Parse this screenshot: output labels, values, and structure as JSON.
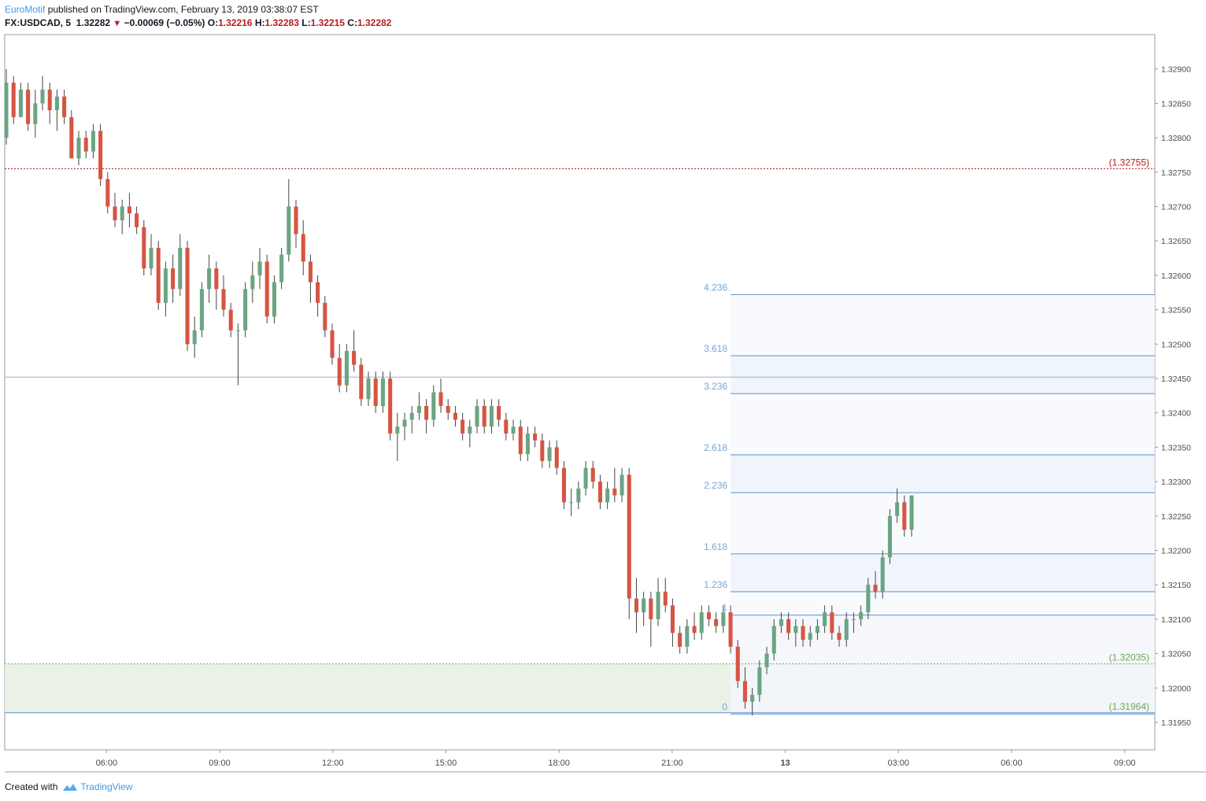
{
  "header": {
    "author": "EuroMotif",
    "published_text": "published on TradingView.com, February 13, 2019 03:38:07 EST",
    "symbol": "FX:USDCAD, 5",
    "last_price": "1.32282",
    "change": "−0.00069 (−0.05%)",
    "open_label": "O:",
    "open": "1.32216",
    "high_label": "H:",
    "high": "1.32283",
    "low_label": "L:",
    "low": "1.32215",
    "close_label": "C:",
    "close": "1.32282",
    "down_icon": "triangle-down-icon"
  },
  "footer": {
    "created_with": "Created with",
    "brand": "TradingView",
    "logo_icon": "tradingview-cloud-icon"
  },
  "colors": {
    "up": "#6ba583",
    "down": "#d75442",
    "fib_line": "#5b8fc7",
    "fib_text": "#7aa6d6",
    "red_level": "#b71c1c",
    "green_level": "#6aa84f",
    "axis_text": "#4a4a4a"
  },
  "chart_data": {
    "type": "candlestick",
    "symbol": "FX:USDCAD",
    "interval": "5",
    "ylim": [
      1.3191,
      1.3295
    ],
    "y_ticks": [
      "1.32900",
      "1.32850",
      "1.32800",
      "1.32750",
      "1.32700",
      "1.32650",
      "1.32600",
      "1.32550",
      "1.32500",
      "1.32450",
      "1.32400",
      "1.32350",
      "1.32300",
      "1.32250",
      "1.32200",
      "1.32150",
      "1.32100",
      "1.32050",
      "1.32000",
      "1.31950"
    ],
    "x_ticks": [
      "06:00",
      "09:00",
      "12:00",
      "15:00",
      "18:00",
      "21:00",
      "13",
      "03:00",
      "06:00",
      "09:00"
    ],
    "x_tick_hours": [
      6,
      9,
      12,
      15,
      18,
      21,
      24,
      27,
      30,
      33
    ],
    "time_range_hours": [
      3.3,
      33.8
    ],
    "horizontal_levels": [
      {
        "label": "(1.32755)",
        "price": 1.32755,
        "color": "red",
        "style": "dotted"
      },
      {
        "label": "(1.32035)",
        "price": 1.32035,
        "color": "green",
        "style": "dotted"
      },
      {
        "label": "(1.31964)",
        "price": 1.31964,
        "color": "green",
        "style": "solid"
      }
    ],
    "support_zone": [
      1.31964,
      1.32035
    ],
    "blue_horizontal_line": 1.32452,
    "fib_extension": {
      "start_hour": 22.55,
      "levels": [
        {
          "label": "4.236",
          "price": 1.32572
        },
        {
          "label": "3.618",
          "price": 1.32483
        },
        {
          "label": "3.236",
          "price": 1.32428
        },
        {
          "label": "2.618",
          "price": 1.32339
        },
        {
          "label": "2.236",
          "price": 1.32284
        },
        {
          "label": "1.618",
          "price": 1.32195
        },
        {
          "label": "1.236",
          "price": 1.3214
        },
        {
          "label": "1",
          "price": 1.32106
        },
        {
          "label": "0",
          "price": 1.31962
        }
      ]
    },
    "candles_ohlc": [
      [
        1.328,
        1.329,
        1.3279,
        1.3288
      ],
      [
        1.3288,
        1.3289,
        1.3282,
        1.3283
      ],
      [
        1.3283,
        1.3288,
        1.3283,
        1.3287
      ],
      [
        1.3287,
        1.3288,
        1.3281,
        1.3282
      ],
      [
        1.3282,
        1.3287,
        1.328,
        1.3285
      ],
      [
        1.3285,
        1.3289,
        1.3284,
        1.3287
      ],
      [
        1.3287,
        1.3288,
        1.3282,
        1.3284
      ],
      [
        1.3284,
        1.3287,
        1.3281,
        1.3286
      ],
      [
        1.3286,
        1.3287,
        1.3282,
        1.3283
      ],
      [
        1.3283,
        1.3284,
        1.3277,
        1.3277
      ],
      [
        1.3277,
        1.3281,
        1.3276,
        1.328
      ],
      [
        1.328,
        1.3281,
        1.3277,
        1.3278
      ],
      [
        1.3278,
        1.3282,
        1.3277,
        1.3281
      ],
      [
        1.3281,
        1.3282,
        1.3273,
        1.3274
      ],
      [
        1.3274,
        1.3275,
        1.3269,
        1.327
      ],
      [
        1.327,
        1.3272,
        1.3267,
        1.3268
      ],
      [
        1.3268,
        1.3271,
        1.3266,
        1.327
      ],
      [
        1.327,
        1.3272,
        1.3267,
        1.3269
      ],
      [
        1.3269,
        1.327,
        1.3266,
        1.3267
      ],
      [
        1.3267,
        1.3268,
        1.326,
        1.3261
      ],
      [
        1.3261,
        1.3266,
        1.326,
        1.3264
      ],
      [
        1.3264,
        1.3265,
        1.3255,
        1.3256
      ],
      [
        1.3256,
        1.3262,
        1.3254,
        1.3261
      ],
      [
        1.3261,
        1.3263,
        1.3256,
        1.3258
      ],
      [
        1.3258,
        1.3266,
        1.3257,
        1.3264
      ],
      [
        1.3264,
        1.3265,
        1.3249,
        1.325
      ],
      [
        1.325,
        1.3254,
        1.3248,
        1.3252
      ],
      [
        1.3252,
        1.3259,
        1.3251,
        1.3258
      ],
      [
        1.3258,
        1.3263,
        1.3256,
        1.3261
      ],
      [
        1.3261,
        1.3262,
        1.3255,
        1.3258
      ],
      [
        1.3258,
        1.326,
        1.3254,
        1.3255
      ],
      [
        1.3255,
        1.3256,
        1.3251,
        1.3252
      ],
      [
        1.3252,
        1.3253,
        1.3244,
        1.3252
      ],
      [
        1.3252,
        1.3259,
        1.3251,
        1.3258
      ],
      [
        1.3258,
        1.3262,
        1.3256,
        1.326
      ],
      [
        1.326,
        1.3264,
        1.3258,
        1.3262
      ],
      [
        1.3262,
        1.3263,
        1.3253,
        1.3254
      ],
      [
        1.3254,
        1.326,
        1.3253,
        1.3259
      ],
      [
        1.3259,
        1.3264,
        1.3258,
        1.3263
      ],
      [
        1.3263,
        1.3274,
        1.3262,
        1.327
      ],
      [
        1.327,
        1.3271,
        1.3264,
        1.3266
      ],
      [
        1.3266,
        1.3268,
        1.326,
        1.3262
      ],
      [
        1.3262,
        1.3263,
        1.3256,
        1.3259
      ],
      [
        1.3259,
        1.326,
        1.3254,
        1.3256
      ],
      [
        1.3256,
        1.3257,
        1.3251,
        1.3252
      ],
      [
        1.3252,
        1.3253,
        1.3247,
        1.3248
      ],
      [
        1.3248,
        1.325,
        1.3243,
        1.3244
      ],
      [
        1.3244,
        1.325,
        1.3243,
        1.3249
      ],
      [
        1.3249,
        1.3252,
        1.3246,
        1.3247
      ],
      [
        1.3247,
        1.3248,
        1.3241,
        1.3242
      ],
      [
        1.3242,
        1.3246,
        1.3241,
        1.3245
      ],
      [
        1.3245,
        1.3246,
        1.324,
        1.3241
      ],
      [
        1.3241,
        1.3246,
        1.324,
        1.3245
      ],
      [
        1.3245,
        1.3246,
        1.3236,
        1.3237
      ],
      [
        1.3237,
        1.324,
        1.3233,
        1.3238
      ],
      [
        1.3238,
        1.324,
        1.3236,
        1.3239
      ],
      [
        1.3239,
        1.3241,
        1.3237,
        1.324
      ],
      [
        1.324,
        1.3243,
        1.3239,
        1.3241
      ],
      [
        1.3241,
        1.3242,
        1.3237,
        1.3239
      ],
      [
        1.3239,
        1.3244,
        1.3238,
        1.3243
      ],
      [
        1.3243,
        1.3245,
        1.324,
        1.3241
      ],
      [
        1.3241,
        1.3242,
        1.3239,
        1.324
      ],
      [
        1.324,
        1.3241,
        1.3238,
        1.3239
      ],
      [
        1.3239,
        1.324,
        1.3236,
        1.3237
      ],
      [
        1.3237,
        1.3239,
        1.3235,
        1.3238
      ],
      [
        1.3238,
        1.3242,
        1.3237,
        1.3241
      ],
      [
        1.3241,
        1.3242,
        1.3237,
        1.3238
      ],
      [
        1.3238,
        1.3242,
        1.3237,
        1.3241
      ],
      [
        1.3241,
        1.3242,
        1.3238,
        1.3239
      ],
      [
        1.3239,
        1.324,
        1.3236,
        1.3237
      ],
      [
        1.3237,
        1.3239,
        1.3236,
        1.3238
      ],
      [
        1.3238,
        1.3239,
        1.3233,
        1.3234
      ],
      [
        1.3234,
        1.3238,
        1.3233,
        1.3237
      ],
      [
        1.3237,
        1.3238,
        1.3235,
        1.3236
      ],
      [
        1.3236,
        1.3237,
        1.3232,
        1.3233
      ],
      [
        1.3233,
        1.3236,
        1.3232,
        1.3235
      ],
      [
        1.3235,
        1.3236,
        1.3231,
        1.3232
      ],
      [
        1.3232,
        1.3233,
        1.3226,
        1.3227
      ],
      [
        1.3227,
        1.3229,
        1.3225,
        1.3227
      ],
      [
        1.3227,
        1.323,
        1.3226,
        1.3229
      ],
      [
        1.3229,
        1.3233,
        1.3228,
        1.3232
      ],
      [
        1.3232,
        1.3233,
        1.3229,
        1.323
      ],
      [
        1.323,
        1.3231,
        1.3226,
        1.3227
      ],
      [
        1.3227,
        1.323,
        1.3226,
        1.3229
      ],
      [
        1.3229,
        1.3232,
        1.3227,
        1.3228
      ],
      [
        1.3228,
        1.3232,
        1.3227,
        1.3231
      ],
      [
        1.3231,
        1.3232,
        1.321,
        1.3213
      ],
      [
        1.3213,
        1.3216,
        1.3208,
        1.3211
      ],
      [
        1.3211,
        1.3214,
        1.3209,
        1.3213
      ],
      [
        1.3213,
        1.3214,
        1.3206,
        1.321
      ],
      [
        1.321,
        1.3216,
        1.3209,
        1.3214
      ],
      [
        1.3214,
        1.3216,
        1.3211,
        1.3212
      ],
      [
        1.3212,
        1.3213,
        1.3206,
        1.3208
      ],
      [
        1.3208,
        1.3209,
        1.3205,
        1.3206
      ],
      [
        1.3206,
        1.321,
        1.3205,
        1.3209
      ],
      [
        1.3209,
        1.3211,
        1.3207,
        1.3208
      ],
      [
        1.3208,
        1.3212,
        1.3207,
        1.3211
      ],
      [
        1.3211,
        1.3212,
        1.3209,
        1.321
      ],
      [
        1.321,
        1.3211,
        1.3208,
        1.3209
      ],
      [
        1.3209,
        1.3212,
        1.3208,
        1.3211
      ],
      [
        1.3211,
        1.3212,
        1.3205,
        1.3206
      ],
      [
        1.3206,
        1.3207,
        1.32,
        1.3201
      ],
      [
        1.3201,
        1.3203,
        1.3197,
        1.3198
      ],
      [
        1.3198,
        1.32,
        1.3196,
        1.3199
      ],
      [
        1.3199,
        1.3204,
        1.3198,
        1.3203
      ],
      [
        1.3203,
        1.3206,
        1.3202,
        1.3205
      ],
      [
        1.3205,
        1.321,
        1.3204,
        1.3209
      ],
      [
        1.3209,
        1.3211,
        1.3208,
        1.321
      ],
      [
        1.321,
        1.3211,
        1.3207,
        1.3208
      ],
      [
        1.3208,
        1.321,
        1.3206,
        1.3209
      ],
      [
        1.3209,
        1.321,
        1.3206,
        1.3207
      ],
      [
        1.3207,
        1.3209,
        1.3206,
        1.3208
      ],
      [
        1.3208,
        1.321,
        1.3207,
        1.3209
      ],
      [
        1.3209,
        1.3212,
        1.3208,
        1.3211
      ],
      [
        1.3211,
        1.3212,
        1.3207,
        1.3208
      ],
      [
        1.3208,
        1.3209,
        1.3206,
        1.3207
      ],
      [
        1.3207,
        1.3211,
        1.3206,
        1.321
      ],
      [
        1.321,
        1.3211,
        1.3208,
        1.321
      ],
      [
        1.321,
        1.3212,
        1.3209,
        1.3211
      ],
      [
        1.3211,
        1.3216,
        1.321,
        1.3215
      ],
      [
        1.3215,
        1.3217,
        1.3213,
        1.3214
      ],
      [
        1.3214,
        1.322,
        1.3213,
        1.3219
      ],
      [
        1.3219,
        1.3226,
        1.3218,
        1.3225
      ],
      [
        1.3225,
        1.3229,
        1.3224,
        1.3227
      ],
      [
        1.3227,
        1.3228,
        1.3222,
        1.3223
      ],
      [
        1.3223,
        1.3228,
        1.3222,
        1.3228
      ]
    ]
  }
}
